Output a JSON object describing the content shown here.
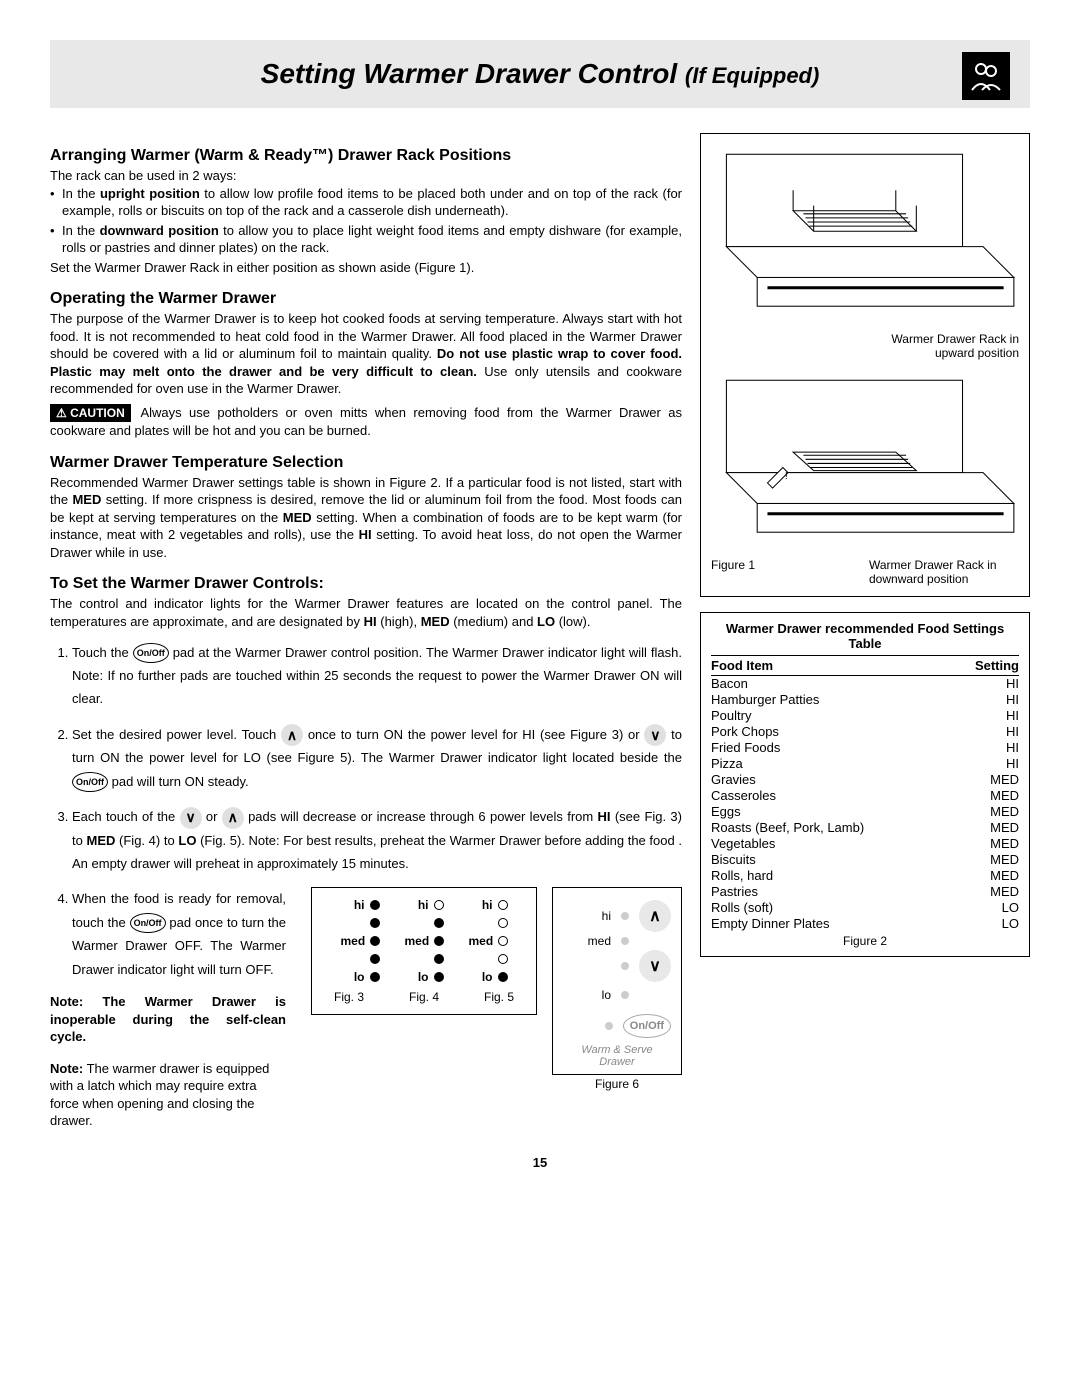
{
  "page_number": "15",
  "title": {
    "main": "Setting Warmer Drawer Control",
    "sub": "(If Equipped)"
  },
  "s1": {
    "heading": "Arranging Warmer (Warm & Ready™) Drawer Rack Positions",
    "intro": "The rack can be used in 2 ways:",
    "b1a": "In the ",
    "b1b": "upright position",
    "b1c": " to allow low profile food items to be placed both under and on top of the rack (for example, rolls or biscuits on top of the rack and a casserole dish underneath).",
    "b2a": "In the ",
    "b2b": "downward position",
    "b2c": " to allow you to place light weight food items and empty dishware (for example, rolls or pastries and dinner plates) on the rack.",
    "outro": "Set the Warmer Drawer Rack in either position as shown aside (Figure 1)."
  },
  "s2": {
    "heading": "Operating the Warmer Drawer",
    "p1a": "The purpose of the Warmer Drawer is to keep hot cooked foods at serving temperature. Always start with hot food. It is not recommended to heat cold food in the Warmer Drawer. All food placed in the Warmer Drawer should be covered with a lid or aluminum foil to maintain quality. ",
    "p1b": "Do not use plastic wrap to cover food. Plastic may melt onto the drawer and be very difficult to clean.",
    "p1c": " Use only utensils and cookware recommended for oven use in the Warmer Drawer.",
    "caution_label": "CAUTION",
    "caution_text": " Always use potholders or oven mitts when removing food from the Warmer Drawer as cookware and plates will be hot and you can be burned."
  },
  "s3": {
    "heading": "Warmer Drawer Temperature Selection",
    "p1a": "Recommended Warmer Drawer settings table is shown in Figure 2. If a particular food is not listed, start with the ",
    "p1b": "MED",
    "p1c": " setting. If more crispness is desired, remove the lid or aluminum foil from the food. Most foods can be kept at serving temperatures on the ",
    "p1d": "MED",
    "p1e": " setting. When a combination of foods are to be kept warm (for instance, meat with 2 vegetables and rolls), use the ",
    "p1f": "HI",
    "p1g": " setting. To avoid heat loss, do not open the Warmer Drawer while in use."
  },
  "s4": {
    "heading": "To Set the Warmer Drawer Controls:",
    "intro_a": "The control and indicator lights for the Warmer Drawer features are located on the control panel. The temperatures are approximate, and are designated by ",
    "intro_b": "HI",
    "intro_c": " (high), ",
    "intro_d": "MED",
    "intro_e": " (medium) and ",
    "intro_f": "LO",
    "intro_g": " (low).",
    "li1a": "Touch the ",
    "li1b": " pad at the Warmer Drawer control position. The Warmer Drawer indicator light will flash. Note: If no further pads are touched within 25 seconds the request to power the Warmer Drawer ON will clear.",
    "li2a": "Set the desired power level. Touch ",
    "li2b": " once to turn ON the power level for HI (see Figure 3) or ",
    "li2c": " to turn ON the power level for LO (see Figure 5). The Warmer Drawer indicator light located beside the ",
    "li2d": " pad will turn ON steady.",
    "li3a": "Each touch of the ",
    "li3b": " or ",
    "li3c": " pads will decrease or increase through 6 power levels from ",
    "li3d": "HI",
    "li3e": " (see Fig. 3) to ",
    "li3f": "MED",
    "li3g": " (Fig. 4) to ",
    "li3h": "LO",
    "li3i": " (Fig. 5). Note: For best results, preheat the Warmer Drawer before adding the food . An empty drawer will preheat in approximately 15 minutes.",
    "li4a": "When the food is ready for removal, touch the ",
    "li4b": " pad once to turn the Warmer Drawer OFF. The Warmer Drawer indicator light will turn OFF.",
    "note1": "Note: The Warmer Drawer is inoperable during the self-clean cycle.",
    "note2a": "Note:",
    "note2b": " The warmer drawer is equipped with a latch which may require extra force when opening and closing the drawer.",
    "onoff_label": "On/Off",
    "up_arrow": "∧",
    "down_arrow": "∨"
  },
  "fig1": {
    "cap_up": "Warmer Drawer Rack in upward position",
    "cap_down": "Warmer Drawer Rack in downward position",
    "label": "Figure 1"
  },
  "food_table": {
    "title": "Warmer Drawer recommended Food Settings Table",
    "col1": "Food Item",
    "col2": "Setting",
    "rows": [
      {
        "item": "Bacon",
        "setting": "HI"
      },
      {
        "item": "Hamburger Patties",
        "setting": "HI"
      },
      {
        "item": "Poultry",
        "setting": "HI"
      },
      {
        "item": "Pork Chops",
        "setting": "HI"
      },
      {
        "item": "Fried Foods",
        "setting": "HI"
      },
      {
        "item": "Pizza",
        "setting": "HI"
      },
      {
        "item": "Gravies",
        "setting": "MED"
      },
      {
        "item": "Casseroles",
        "setting": "MED"
      },
      {
        "item": "Eggs",
        "setting": "MED"
      },
      {
        "item": "Roasts (Beef, Pork, Lamb)",
        "setting": "MED"
      },
      {
        "item": "Vegetables",
        "setting": "MED"
      },
      {
        "item": "Biscuits",
        "setting": "MED"
      },
      {
        "item": "Rolls, hard",
        "setting": "MED"
      },
      {
        "item": "Pastries",
        "setting": "MED"
      },
      {
        "item": "Rolls (soft)",
        "setting": "LO"
      },
      {
        "item": "Empty Dinner Plates",
        "setting": "LO"
      }
    ],
    "caption": "Figure 2"
  },
  "fig345": {
    "hi": "hi",
    "med": "med",
    "lo": "lo",
    "labels": [
      "Fig. 3",
      "Fig. 4",
      "Fig. 5"
    ],
    "pattern": [
      [
        true,
        true,
        true,
        true,
        true
      ],
      [
        false,
        true,
        true,
        true,
        true
      ],
      [
        false,
        false,
        false,
        false,
        true
      ]
    ]
  },
  "fig6": {
    "hi": "hi",
    "med": "med",
    "lo": "lo",
    "onoff": "On/Off",
    "sub": "Warm & Serve Drawer",
    "caption": "Figure 6",
    "up": "∧",
    "down": "∨"
  }
}
